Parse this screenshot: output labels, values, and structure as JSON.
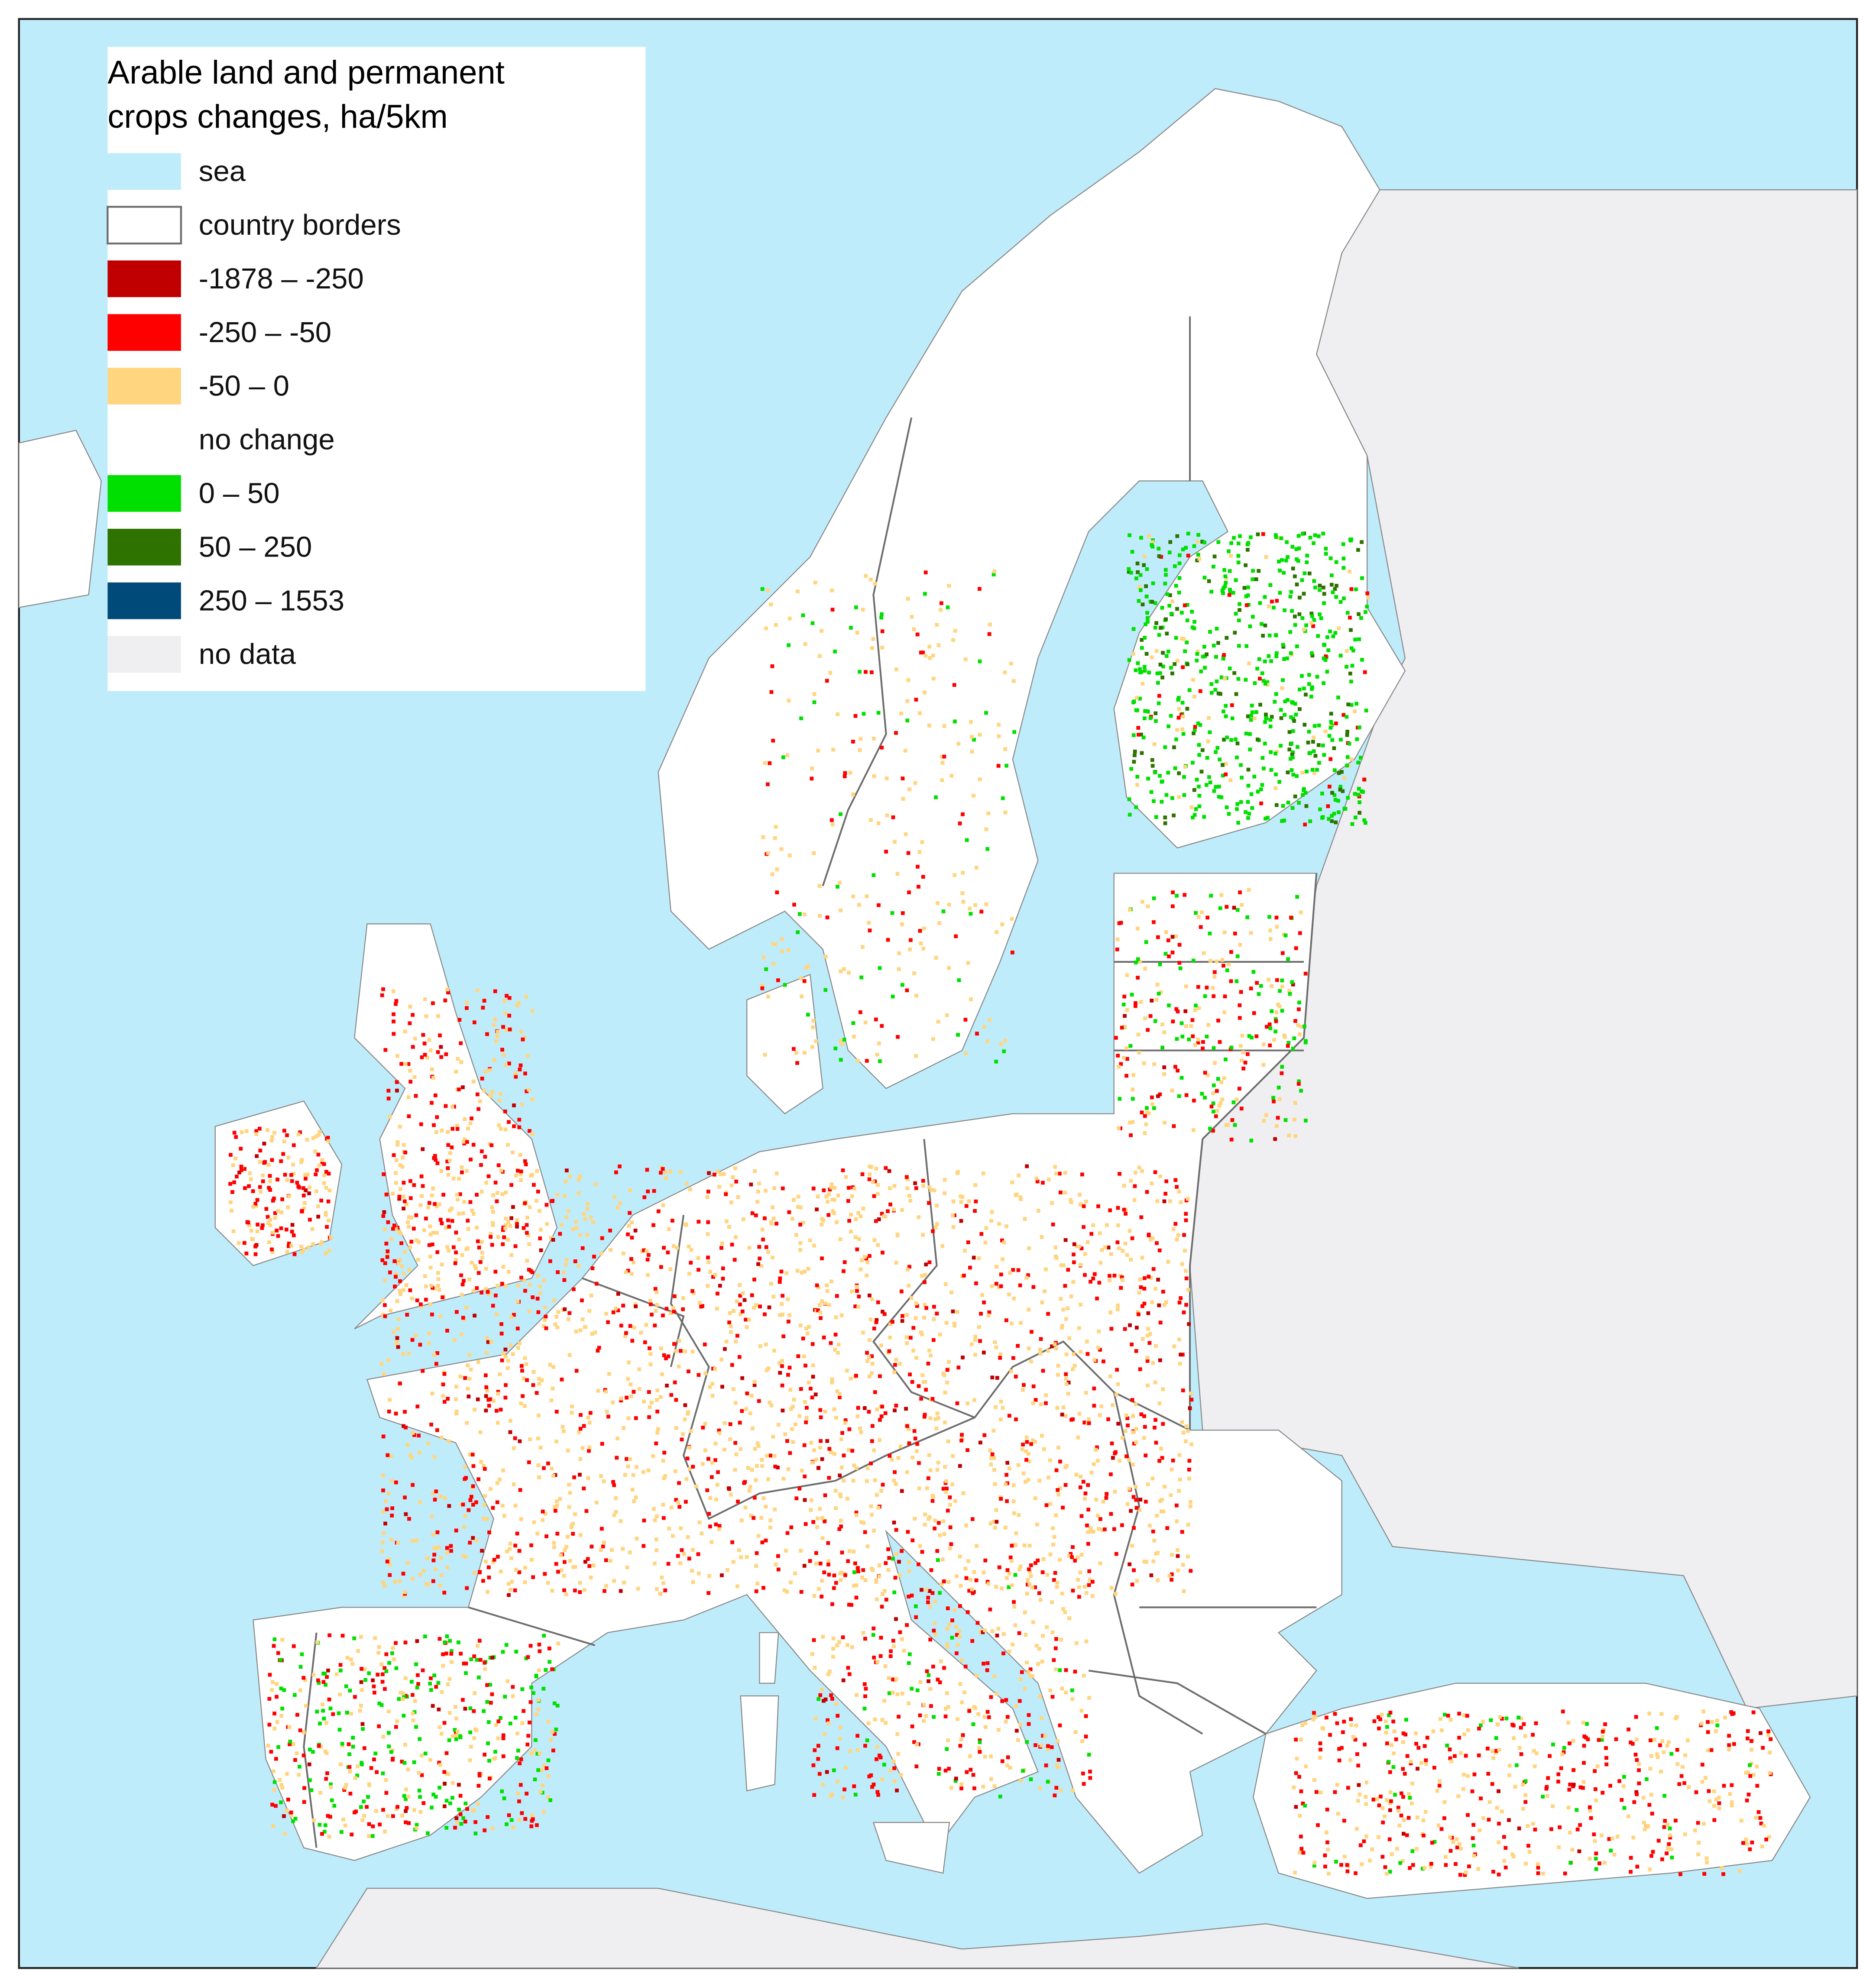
{
  "legend": {
    "title": [
      "Arable land and permanent",
      "crops changes, ha/5km"
    ],
    "items": [
      {
        "label": "sea",
        "color": "#bfecfb"
      },
      {
        "label": "country borders",
        "color": "#ffffff"
      },
      {
        "label": "-1878 – -250",
        "color": "#c00000"
      },
      {
        "label": "-250 – -50",
        "color": "#ff0000"
      },
      {
        "label": "-50 – 0",
        "color": "#ffd580"
      },
      {
        "label": "no change",
        "color": "#ffffff"
      },
      {
        "label": "0 – 50",
        "color": "#00e000"
      },
      {
        "label": "50 – 250",
        "color": "#2e7300"
      },
      {
        "label": "250 – 1553",
        "color": "#004a7a"
      },
      {
        "label": "no data",
        "color": "#efeff2"
      }
    ]
  }
}
